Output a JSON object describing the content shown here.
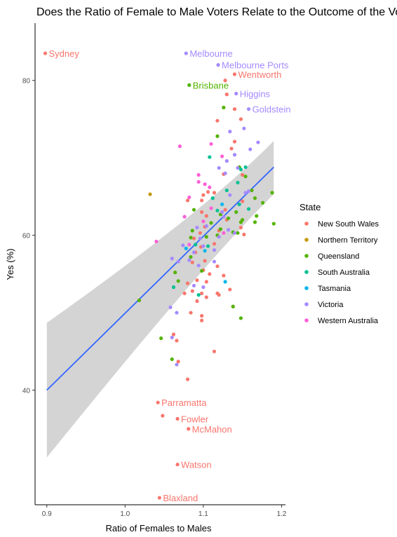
{
  "chart_data": {
    "type": "scatter",
    "title": "Does the Ratio of Female to Male Voters Relate to the Outcome of the Vote?",
    "xlabel": "Ratio of Females to Males",
    "ylabel": "Yes (%)",
    "xlim": [
      0.885,
      1.205
    ],
    "ylim": [
      25.2,
      87.4
    ],
    "xticks": [
      0.9,
      1.0,
      1.1,
      1.2
    ],
    "xtick_labels": [
      "0.9",
      "1.0",
      "1.1",
      "1.2"
    ],
    "yticks": [
      40,
      60,
      80
    ],
    "ytick_labels": [
      "40",
      "60",
      "80"
    ],
    "grid": false,
    "legend": {
      "title": "State",
      "position": "right",
      "entries": [
        {
          "name": "New South Wales",
          "color": "#F8766D"
        },
        {
          "name": "Northern Territory",
          "color": "#C49A00"
        },
        {
          "name": "Queensland",
          "color": "#53B400"
        },
        {
          "name": "South Australia",
          "color": "#00C094"
        },
        {
          "name": "Tasmania",
          "color": "#00B6EB"
        },
        {
          "name": "Victoria",
          "color": "#A58AFF"
        },
        {
          "name": "Western Australia",
          "color": "#FB61D7"
        }
      ]
    },
    "trend": {
      "method": "linear",
      "color": "#3366FF",
      "x": [
        0.9,
        1.19
      ],
      "y": [
        40.0,
        68.8
      ],
      "ci_lower_y": [
        31.3,
        65.3
      ],
      "ci_upper_y": [
        48.7,
        72.2
      ]
    },
    "labelled_points": [
      {
        "label": "Sydney",
        "state": "New South Wales",
        "x": 0.898,
        "y": 83.5
      },
      {
        "label": "Melbourne",
        "state": "Victoria",
        "x": 1.078,
        "y": 83.5
      },
      {
        "label": "Melbourne Ports",
        "state": "Victoria",
        "x": 1.119,
        "y": 82.0
      },
      {
        "label": "Wentworth",
        "state": "New South Wales",
        "x": 1.14,
        "y": 80.8
      },
      {
        "label": "Brisbane",
        "state": "Queensland",
        "x": 1.082,
        "y": 79.4
      },
      {
        "label": "Higgins",
        "state": "Victoria",
        "x": 1.142,
        "y": 78.3
      },
      {
        "label": "Goldstein",
        "state": "Victoria",
        "x": 1.158,
        "y": 76.3
      },
      {
        "label": "Parramatta",
        "state": "New South Wales",
        "x": 1.042,
        "y": 38.4
      },
      {
        "label": "Fowler",
        "state": "New South Wales",
        "x": 1.067,
        "y": 36.3
      },
      {
        "label": "McMahon",
        "state": "New South Wales",
        "x": 1.081,
        "y": 35.0
      },
      {
        "label": "Watson",
        "state": "New South Wales",
        "x": 1.067,
        "y": 30.4
      },
      {
        "label": "Blaxland",
        "state": "New South Wales",
        "x": 1.044,
        "y": 26.1
      }
    ],
    "series": [
      {
        "name": "New South Wales",
        "color": "#F8766D",
        "points": [
          [
            1.128,
            80.0
          ],
          [
            1.13,
            78.2
          ],
          [
            1.14,
            76.3
          ],
          [
            1.148,
            75.0
          ],
          [
            1.118,
            74.8
          ],
          [
            1.14,
            72.1
          ],
          [
            1.136,
            71.2
          ],
          [
            1.126,
            67.9
          ],
          [
            1.15,
            67.8
          ],
          [
            1.1,
            65.2
          ],
          [
            1.106,
            65.6
          ],
          [
            1.114,
            65.5
          ],
          [
            1.098,
            64.5
          ],
          [
            1.15,
            64.4
          ],
          [
            1.098,
            63.0
          ],
          [
            1.104,
            62.5
          ],
          [
            1.13,
            62.0
          ],
          [
            1.102,
            61.1
          ],
          [
            1.148,
            61.0
          ],
          [
            1.096,
            60.3
          ],
          [
            1.152,
            60.1
          ],
          [
            1.12,
            60.6
          ],
          [
            1.088,
            59.6
          ],
          [
            1.097,
            58.5
          ],
          [
            1.114,
            58.9
          ],
          [
            1.09,
            57.8
          ],
          [
            1.102,
            56.7
          ],
          [
            1.086,
            56.5
          ],
          [
            1.118,
            56.0
          ],
          [
            1.1,
            55.5
          ],
          [
            1.108,
            55.0
          ],
          [
            1.126,
            54.8
          ],
          [
            1.092,
            54.2
          ],
          [
            1.104,
            54.0
          ],
          [
            1.08,
            53.8
          ],
          [
            1.134,
            53.0
          ],
          [
            1.086,
            52.8
          ],
          [
            1.098,
            52.5
          ],
          [
            1.118,
            52.5
          ],
          [
            1.076,
            52.5
          ],
          [
            1.12,
            52.3
          ],
          [
            1.104,
            52.0
          ],
          [
            1.092,
            51.5
          ],
          [
            1.084,
            50.0
          ],
          [
            1.098,
            49.6
          ],
          [
            1.098,
            49.0
          ],
          [
            1.138,
            50.8
          ],
          [
            1.062,
            47.2
          ],
          [
            1.066,
            46.4
          ],
          [
            1.114,
            45.0
          ],
          [
            1.068,
            43.7
          ],
          [
            1.08,
            41.4
          ],
          [
            1.048,
            36.7
          ],
          [
            1.128,
            63.3
          ],
          [
            1.08,
            64.5
          ]
        ]
      },
      {
        "name": "Northern Territory",
        "color": "#C49A00",
        "points": [
          [
            1.032,
            65.3
          ]
        ]
      },
      {
        "name": "Queensland",
        "color": "#53B400",
        "points": [
          [
            1.126,
            76.5
          ],
          [
            1.118,
            72.8
          ],
          [
            1.146,
            68.8
          ],
          [
            1.154,
            67.6
          ],
          [
            1.188,
            65.5
          ],
          [
            1.166,
            64.8
          ],
          [
            1.176,
            64.2
          ],
          [
            1.088,
            63.3
          ],
          [
            1.142,
            63.0
          ],
          [
            1.122,
            62.7
          ],
          [
            1.132,
            62.2
          ],
          [
            1.15,
            62.0
          ],
          [
            1.148,
            61.7
          ],
          [
            1.11,
            61.6
          ],
          [
            1.166,
            61.7
          ],
          [
            1.19,
            61.5
          ],
          [
            1.168,
            62.5
          ],
          [
            1.122,
            60.8
          ],
          [
            1.138,
            60.4
          ],
          [
            1.144,
            60.3
          ],
          [
            1.118,
            60.0
          ],
          [
            1.104,
            59.8
          ],
          [
            1.084,
            59.7
          ],
          [
            1.084,
            57.2
          ],
          [
            1.064,
            55.2
          ],
          [
            1.098,
            55.4
          ],
          [
            1.068,
            54.1
          ],
          [
            1.018,
            51.6
          ],
          [
            1.046,
            46.7
          ],
          [
            1.06,
            44.0
          ],
          [
            1.138,
            50.8
          ],
          [
            1.148,
            49.3
          ],
          [
            1.162,
            65.8
          ],
          [
            1.086,
            60.6
          ]
        ]
      },
      {
        "name": "South Australia",
        "color": "#00C094",
        "points": [
          [
            1.108,
            70.1
          ],
          [
            1.148,
            68.5
          ],
          [
            1.154,
            68.8
          ],
          [
            1.144,
            66.8
          ],
          [
            1.13,
            65.8
          ],
          [
            1.112,
            64.8
          ],
          [
            1.118,
            63.2
          ],
          [
            1.158,
            63.4
          ],
          [
            1.09,
            58.8
          ],
          [
            1.106,
            58.6
          ],
          [
            1.062,
            53.3
          ],
          [
            1.146,
            64.0
          ],
          [
            1.094,
            52.3
          ]
        ]
      },
      {
        "name": "Tasmania",
        "color": "#00B6EB",
        "points": [
          [
            1.124,
            64.0
          ],
          [
            1.102,
            58.0
          ],
          [
            1.078,
            58.3
          ],
          [
            1.128,
            54.0
          ]
        ]
      },
      {
        "name": "Victoria",
        "color": "#A58AFF",
        "points": [
          [
            1.152,
            73.8
          ],
          [
            1.17,
            72.0
          ],
          [
            1.134,
            73.4
          ],
          [
            1.16,
            71.1
          ],
          [
            1.13,
            69.6
          ],
          [
            1.14,
            70.4
          ],
          [
            1.12,
            68.7
          ],
          [
            1.144,
            68.7
          ],
          [
            1.128,
            68.0
          ],
          [
            1.158,
            65.7
          ],
          [
            1.154,
            65.5
          ],
          [
            1.134,
            65.2
          ],
          [
            1.124,
            63.0
          ],
          [
            1.126,
            62.4
          ],
          [
            1.104,
            61.2
          ],
          [
            1.092,
            61.0
          ],
          [
            1.132,
            60.7
          ],
          [
            1.14,
            60.3
          ],
          [
            1.12,
            59.8
          ],
          [
            1.096,
            59.6
          ],
          [
            1.1,
            58.6
          ],
          [
            1.074,
            58.7
          ],
          [
            1.114,
            58.1
          ],
          [
            1.088,
            57.8
          ],
          [
            1.068,
            56.6
          ],
          [
            1.082,
            56.8
          ],
          [
            1.094,
            56.1
          ],
          [
            1.114,
            56.6
          ],
          [
            1.066,
            50.0
          ],
          [
            1.06,
            46.8
          ],
          [
            1.066,
            43.3
          ],
          [
            1.058,
            50.7
          ],
          [
            1.1,
            53.3
          ],
          [
            1.088,
            53.5
          ],
          [
            1.06,
            57.0
          ]
        ]
      },
      {
        "name": "Western Australia",
        "color": "#FB61D7",
        "points": [
          [
            1.07,
            71.5
          ],
          [
            1.11,
            71.8
          ],
          [
            1.124,
            70.2
          ],
          [
            1.094,
            67.8
          ],
          [
            1.102,
            66.6
          ],
          [
            1.108,
            66.2
          ],
          [
            1.082,
            64.9
          ],
          [
            1.11,
            63.5
          ],
          [
            1.076,
            62.4
          ],
          [
            1.1,
            61.8
          ],
          [
            1.126,
            60.3
          ],
          [
            1.04,
            59.2
          ],
          [
            1.082,
            58.8
          ],
          [
            1.094,
            66.9
          ]
        ]
      }
    ]
  }
}
